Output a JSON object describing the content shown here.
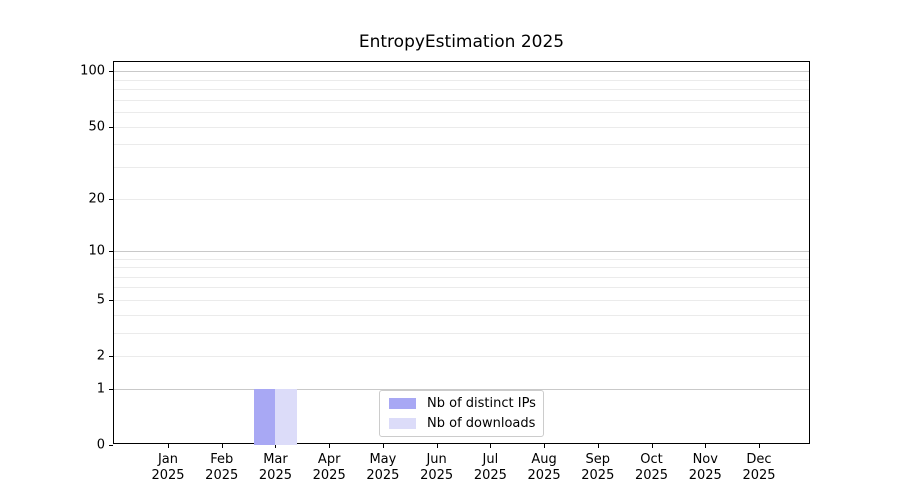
{
  "chart_data": {
    "type": "bar",
    "title": "EntropyEstimation 2025",
    "x_axis": {
      "categories": [
        "Jan",
        "Feb",
        "Mar",
        "Apr",
        "May",
        "Jun",
        "Jul",
        "Aug",
        "Sep",
        "Oct",
        "Nov",
        "Dec"
      ],
      "year_label": "2025"
    },
    "y_axis": {
      "scale": "log1p",
      "tick_labels": [
        0,
        1,
        2,
        5,
        10,
        20,
        50,
        100
      ],
      "strong_gridlines": [
        1,
        10,
        100
      ],
      "light_gridlines": [
        2,
        3,
        4,
        5,
        6,
        7,
        8,
        9,
        20,
        30,
        40,
        50,
        60,
        70,
        80,
        90
      ]
    },
    "series": [
      {
        "name": "Nb of distinct IPs",
        "color": "#a8a8f4",
        "values": [
          0,
          0,
          1,
          0,
          0,
          0,
          0,
          0,
          0,
          0,
          0,
          0
        ]
      },
      {
        "name": "Nb of downloads",
        "color": "#dcdcf9",
        "values": [
          0,
          0,
          1,
          0,
          0,
          0,
          0,
          0,
          0,
          0,
          0,
          0
        ]
      }
    ],
    "legend": {
      "position": "bottom-center-inside"
    },
    "grid": {
      "horizontal_only": true
    },
    "colors": {
      "grid_strong": "#c9c9c9",
      "grid_light": "#ebebeb",
      "axis": "#000000",
      "text": "#000000",
      "background": "#ffffff"
    }
  }
}
